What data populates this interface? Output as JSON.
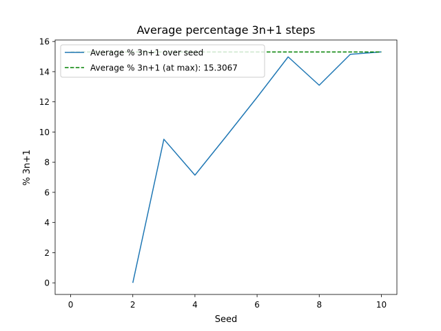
{
  "chart_data": {
    "type": "line",
    "title": "Average percentage 3n+1 steps",
    "xlabel": "Seed",
    "ylabel": "% 3n+1",
    "xlim": [
      -0.5,
      10.5
    ],
    "ylim": [
      -0.77,
      16.1
    ],
    "xticks": [
      0,
      2,
      4,
      6,
      8,
      10
    ],
    "xtick_labels": [
      "0",
      "2",
      "4",
      "6",
      "8",
      "10"
    ],
    "yticks": [
      0,
      2,
      4,
      6,
      8,
      10,
      12,
      14,
      16
    ],
    "ytick_labels": [
      "0",
      "2",
      "4",
      "6",
      "8",
      "10",
      "12",
      "14",
      "16"
    ],
    "grid": false,
    "legend_position": "top-left",
    "series": [
      {
        "name": "Average % 3n+1 over seed",
        "style": "solid",
        "color": "#1f77b4",
        "x": [
          2,
          3,
          4,
          5,
          6,
          7,
          8,
          9,
          10
        ],
        "y": [
          0,
          9.52,
          7.14,
          9.7,
          12.3,
          14.98,
          13.1,
          15.15,
          15.31
        ]
      },
      {
        "name": "Average % 3n+1 (at max): 15.3067",
        "style": "dashed",
        "color": "#008000",
        "x": [
          0,
          10
        ],
        "y": [
          15.3067,
          15.3067
        ]
      }
    ]
  }
}
